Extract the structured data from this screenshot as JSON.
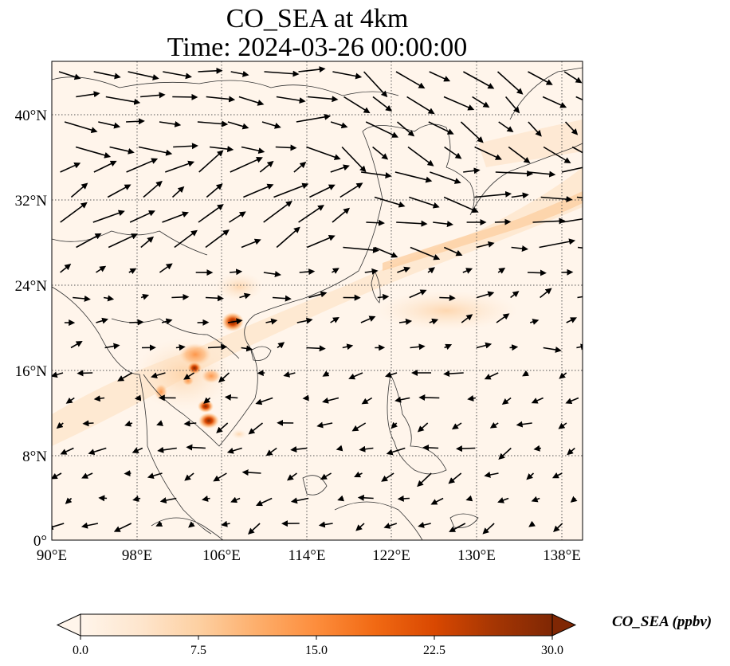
{
  "title": {
    "line1": "CO_SEA at 4km",
    "line2": "Time: 2024-03-26 00:00:00"
  },
  "map": {
    "lon_range": [
      90,
      139
    ],
    "lat_range": [
      0,
      45
    ],
    "lon_ticks": [
      "90°E",
      "98°E",
      "106°E",
      "114°E",
      "122°E",
      "130°E",
      "138°E"
    ],
    "lon_tick_values": [
      90,
      98,
      106,
      114,
      122,
      130,
      138
    ],
    "lat_ticks": [
      "0°",
      "8°N",
      "16°N",
      "24°N",
      "32°N",
      "40°N"
    ],
    "lat_tick_values": [
      0,
      8,
      16,
      24,
      32,
      40
    ],
    "grid": "dotted",
    "background_color": "#fff5eb",
    "wind_arrows": "black"
  },
  "colorbar": {
    "label": "CO_SEA (ppbv)",
    "ticks": [
      "0.0",
      "7.5",
      "15.0",
      "22.5",
      "30.0"
    ],
    "tick_values": [
      0,
      7.5,
      15,
      22.5,
      30
    ],
    "range": [
      0,
      30
    ],
    "extend": "both",
    "colormap": [
      "#fff5eb",
      "#fee6ce",
      "#fdd0a2",
      "#fdae6b",
      "#fd8d3c",
      "#f16913",
      "#d94801",
      "#a63603",
      "#7f2704"
    ]
  }
}
